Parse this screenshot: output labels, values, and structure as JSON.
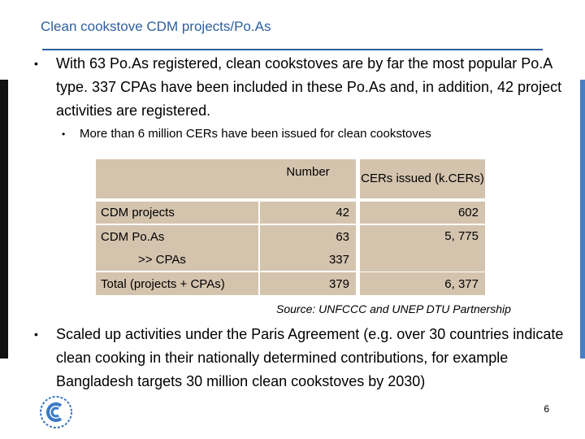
{
  "slide": {
    "title": "Clean cookstove CDM projects/Po.As",
    "bullet1": "With 63 Po.As registered, clean cookstoves are by far the most popular Po.A type. 337 CPAs have been included in these Po.As and, in addition, 42 project activities are registered.",
    "bullet2": "More than 6 million CERs have been issued for clean cookstoves",
    "bullet3": "Scaled up activities under the Paris Agreement (e.g. over 30 countries indicate clean cooking in  their nationally determined contributions, for example Bangladesh targets 30 million clean cookstoves by 2030)",
    "bullet_glyph": "•",
    "source": "Source: UNFCCC and UNEP DTU Partnership",
    "page_number": "6",
    "logo_icon": "unfccc-logo-icon",
    "accent_color": "#2e5f9e",
    "table_fill": "#d4c4ae"
  },
  "table": {
    "headers": {
      "number": "Number",
      "cers": "CERs issued (k.CERs)"
    },
    "rows": [
      {
        "label": "CDM projects",
        "number": "42",
        "cers": "602"
      },
      {
        "label": "CDM Po.As",
        "number": "63",
        "cers": "5, 775"
      },
      {
        "label": ">> CPAs",
        "number": "337",
        "cers": ""
      },
      {
        "label": "Total (projects + CPAs)",
        "number": "379",
        "cers": "6, 377"
      }
    ]
  }
}
